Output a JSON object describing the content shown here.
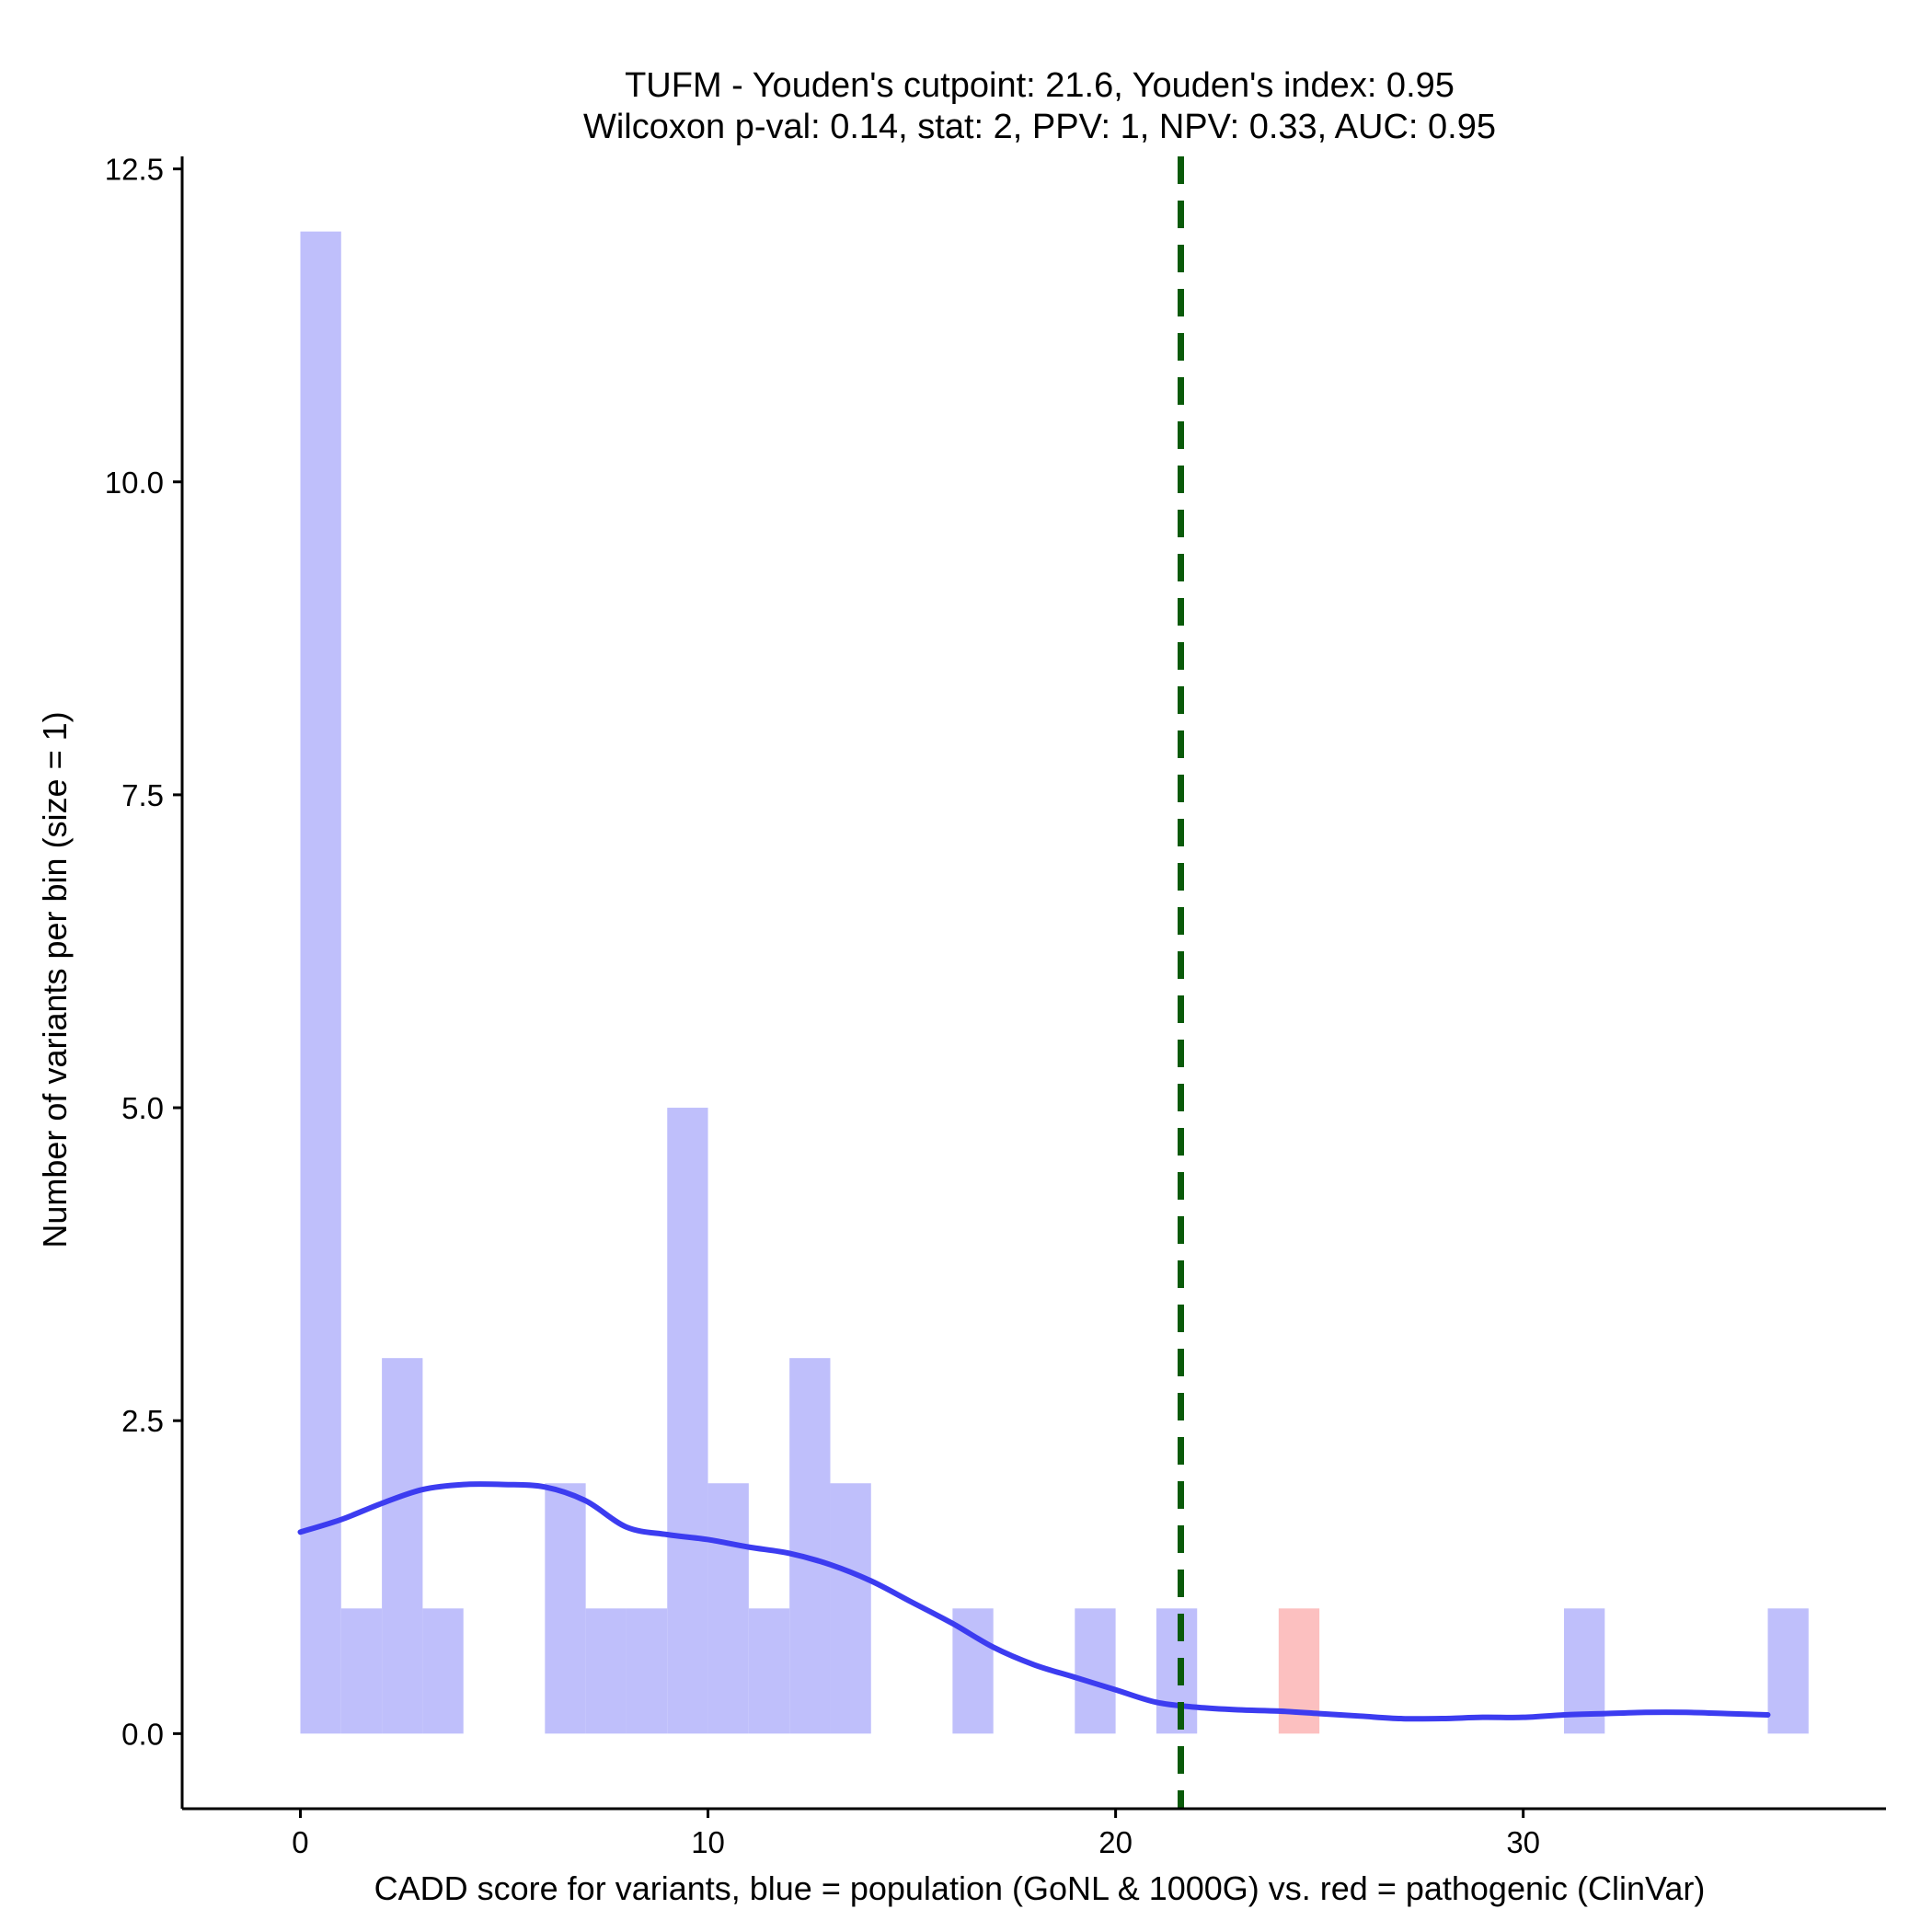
{
  "chart_data": {
    "type": "bar",
    "title_line1": "TUFM - Youden's cutpoint: 21.6, Youden's index: 0.95",
    "title_line2": "Wilcoxon p-val: 0.14, stat: 2, PPV: 1, NPV: 0.33, AUC: 0.95",
    "xlabel": "CADD score for variants, blue = population (GoNL & 1000G) vs. red = pathogenic (ClinVar)",
    "ylabel": "Number of variants per bin (size = 1)",
    "xlim": [
      -2.9,
      38.9
    ],
    "ylim": [
      -0.6,
      12.6
    ],
    "x_ticks": [
      0,
      10,
      20,
      30
    ],
    "x_tick_labels": [
      "0",
      "10",
      "20",
      "30"
    ],
    "y_ticks": [
      0,
      2.5,
      5,
      7.5,
      10,
      12.5
    ],
    "y_tick_labels": [
      "0.0",
      "2.5",
      "5.0",
      "7.5",
      "10.0",
      "12.5"
    ],
    "bin_width": 1,
    "series": [
      {
        "name": "population (GoNL & 1000G)",
        "color": "#bfbffb",
        "bins": [
          {
            "x0": 0,
            "count": 12
          },
          {
            "x0": 1,
            "count": 1
          },
          {
            "x0": 2,
            "count": 3
          },
          {
            "x0": 3,
            "count": 1
          },
          {
            "x0": 6,
            "count": 2
          },
          {
            "x0": 7,
            "count": 1
          },
          {
            "x0": 8,
            "count": 1
          },
          {
            "x0": 9,
            "count": 5
          },
          {
            "x0": 10,
            "count": 2
          },
          {
            "x0": 11,
            "count": 1
          },
          {
            "x0": 12,
            "count": 3
          },
          {
            "x0": 13,
            "count": 2
          },
          {
            "x0": 16,
            "count": 1
          },
          {
            "x0": 19,
            "count": 1
          },
          {
            "x0": 21,
            "count": 1
          },
          {
            "x0": 31,
            "count": 1
          },
          {
            "x0": 36,
            "count": 1
          }
        ]
      },
      {
        "name": "pathogenic (ClinVar)",
        "color": "#fcc0c0",
        "bins": [
          {
            "x0": 24,
            "count": 1
          }
        ]
      }
    ],
    "density_curve": {
      "name": "population density (smoothed)",
      "color": "#3c3cf0",
      "points": [
        [
          0,
          1.61
        ],
        [
          1,
          1.71
        ],
        [
          2,
          1.84
        ],
        [
          3,
          1.95
        ],
        [
          4,
          1.99
        ],
        [
          5,
          1.99
        ],
        [
          6,
          1.97
        ],
        [
          7,
          1.86
        ],
        [
          8,
          1.65
        ],
        [
          9,
          1.59
        ],
        [
          10,
          1.55
        ],
        [
          11,
          1.49
        ],
        [
          12,
          1.44
        ],
        [
          13,
          1.35
        ],
        [
          14,
          1.22
        ],
        [
          15,
          1.05
        ],
        [
          16,
          0.88
        ],
        [
          17,
          0.69
        ],
        [
          18,
          0.55
        ],
        [
          19,
          0.45
        ],
        [
          20,
          0.35
        ],
        [
          21,
          0.25
        ],
        [
          22,
          0.21
        ],
        [
          23,
          0.19
        ],
        [
          24,
          0.18
        ],
        [
          25,
          0.16
        ],
        [
          26,
          0.14
        ],
        [
          27,
          0.12
        ],
        [
          28,
          0.12
        ],
        [
          29,
          0.13
        ],
        [
          30,
          0.13
        ],
        [
          31,
          0.15
        ],
        [
          32,
          0.16
        ],
        [
          33,
          0.17
        ],
        [
          34,
          0.17
        ],
        [
          35,
          0.16
        ],
        [
          36,
          0.15
        ]
      ]
    },
    "cutpoint": {
      "x": 21.6,
      "color": "#0a5a0a",
      "style": "dashed"
    }
  }
}
